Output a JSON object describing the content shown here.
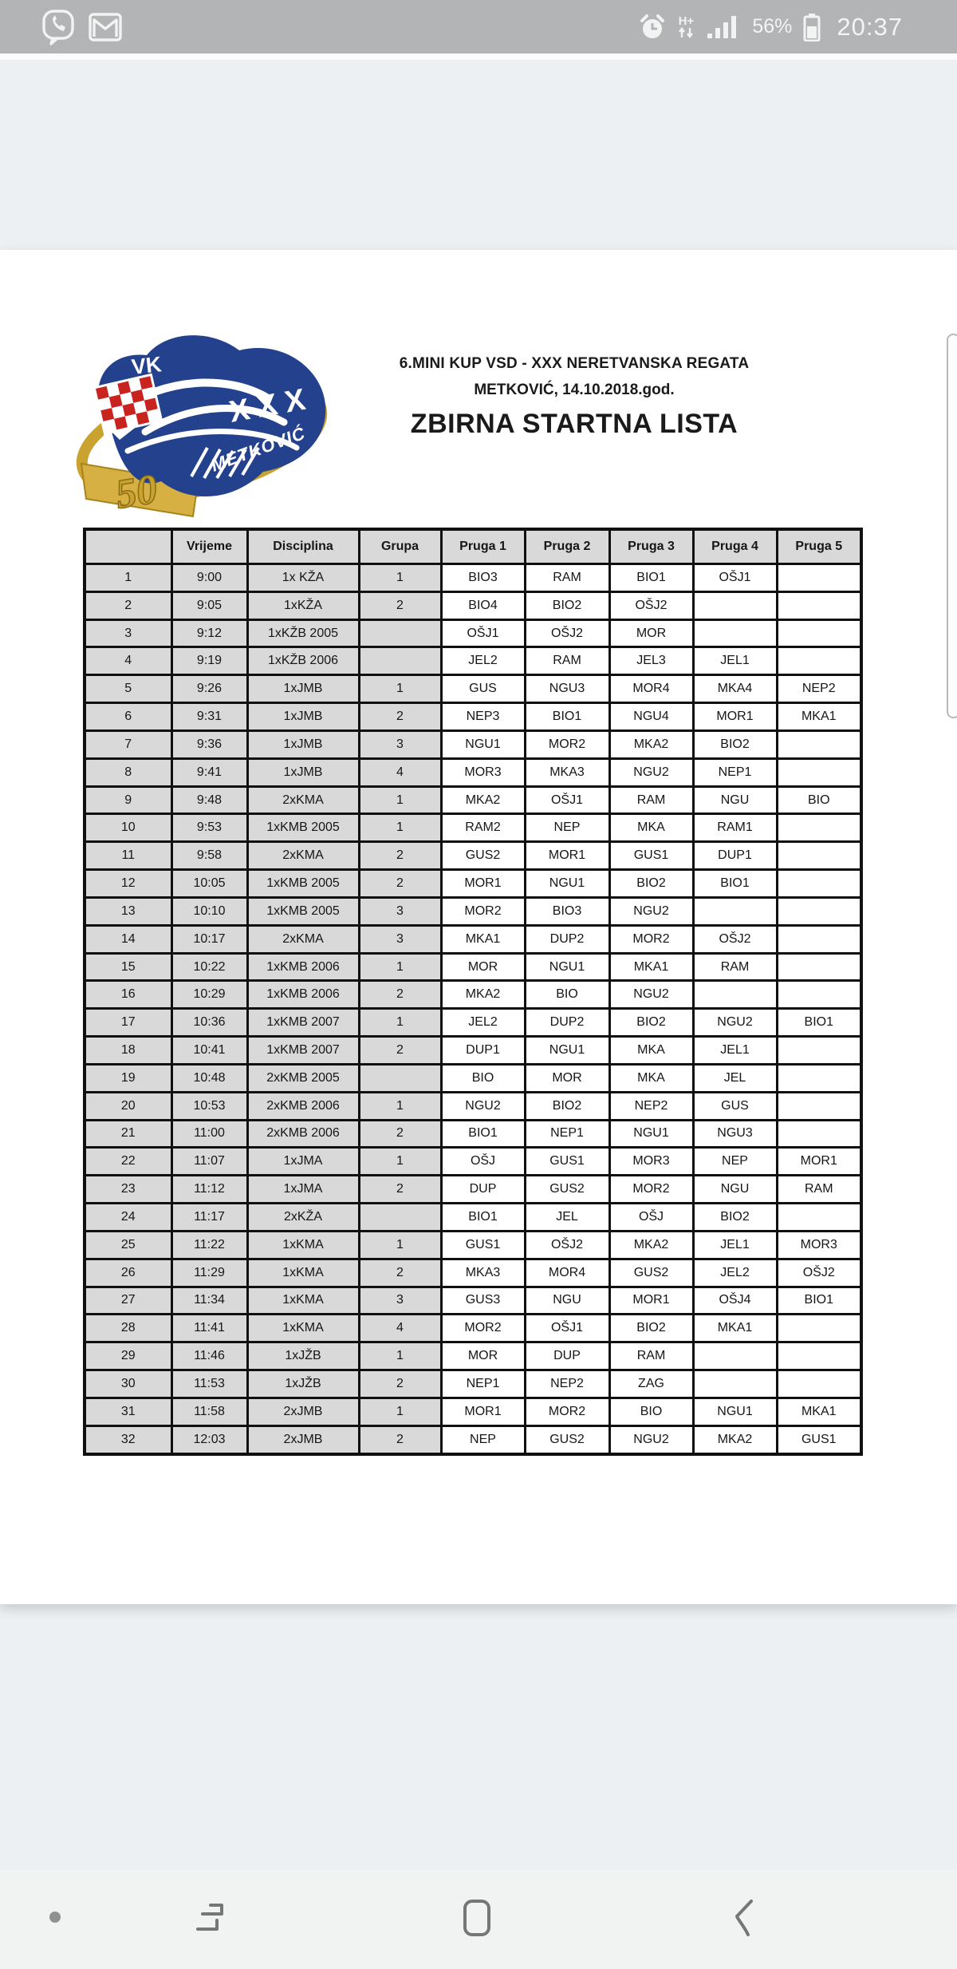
{
  "status_bar": {
    "time": "20:37",
    "battery_percent": "56%",
    "network_type": "H+",
    "left_icons": [
      "viber",
      "gmail"
    ],
    "right_icons": [
      "alarm",
      "network",
      "signal",
      "battery"
    ]
  },
  "document": {
    "title_line1": "6.MINI KUP VSD - XXX NERETVANSKA REGATA",
    "title_line2": "METKOVIĆ, 14.10.2018.god.",
    "title_main": "ZBIRNA STARTNA LISTA",
    "logo": {
      "club_initials": "VK",
      "roman_numeral": "XXX",
      "city": "METKOVIĆ",
      "anniversary": "50"
    },
    "table": {
      "headers": [
        "",
        "Vrijeme",
        "Disciplina",
        "Grupa",
        "Pruga 1",
        "Pruga 2",
        "Pruga 3",
        "Pruga 4",
        "Pruga 5"
      ],
      "rows": [
        [
          "1",
          "9:00",
          "1x KŽA",
          "1",
          "BIO3",
          "RAM",
          "BIO1",
          "OŠJ1",
          ""
        ],
        [
          "2",
          "9:05",
          "1xKŽA",
          "2",
          "BIO4",
          "BIO2",
          "OŠJ2",
          "",
          ""
        ],
        [
          "3",
          "9:12",
          "1xKŽB 2005",
          "",
          "OŠJ1",
          "OŠJ2",
          "MOR",
          "",
          ""
        ],
        [
          "4",
          "9:19",
          "1xKŽB 2006",
          "",
          "JEL2",
          "RAM",
          "JEL3",
          "JEL1",
          ""
        ],
        [
          "5",
          "9:26",
          "1xJMB",
          "1",
          "GUS",
          "NGU3",
          "MOR4",
          "MKA4",
          "NEP2"
        ],
        [
          "6",
          "9:31",
          "1xJMB",
          "2",
          "NEP3",
          "BIO1",
          "NGU4",
          "MOR1",
          "MKA1"
        ],
        [
          "7",
          "9:36",
          "1xJMB",
          "3",
          "NGU1",
          "MOR2",
          "MKA2",
          "BIO2",
          ""
        ],
        [
          "8",
          "9:41",
          "1xJMB",
          "4",
          "MOR3",
          "MKA3",
          "NGU2",
          "NEP1",
          ""
        ],
        [
          "9",
          "9:48",
          "2xKMA",
          "1",
          "MKA2",
          "OŠJ1",
          "RAM",
          "NGU",
          "BIO"
        ],
        [
          "10",
          "9:53",
          "1xKMB 2005",
          "1",
          "RAM2",
          "NEP",
          "MKA",
          "RAM1",
          ""
        ],
        [
          "11",
          "9:58",
          "2xKMA",
          "2",
          "GUS2",
          "MOR1",
          "GUS1",
          "DUP1",
          ""
        ],
        [
          "12",
          "10:05",
          "1xKMB 2005",
          "2",
          "MOR1",
          "NGU1",
          "BIO2",
          "BIO1",
          ""
        ],
        [
          "13",
          "10:10",
          "1xKMB 2005",
          "3",
          "MOR2",
          "BIO3",
          "NGU2",
          "",
          ""
        ],
        [
          "14",
          "10:17",
          "2xKMA",
          "3",
          "MKA1",
          "DUP2",
          "MOR2",
          "OŠJ2",
          ""
        ],
        [
          "15",
          "10:22",
          "1xKMB 2006",
          "1",
          "MOR",
          "NGU1",
          "MKA1",
          "RAM",
          ""
        ],
        [
          "16",
          "10:29",
          "1xKMB 2006",
          "2",
          "MKA2",
          "BIO",
          "NGU2",
          "",
          ""
        ],
        [
          "17",
          "10:36",
          "1xKMB 2007",
          "1",
          "JEL2",
          "DUP2",
          "BIO2",
          "NGU2",
          "BIO1"
        ],
        [
          "18",
          "10:41",
          "1xKMB 2007",
          "2",
          "DUP1",
          "NGU1",
          "MKA",
          "JEL1",
          ""
        ],
        [
          "19",
          "10:48",
          "2xKMB 2005",
          "",
          "BIO",
          "MOR",
          "MKA",
          "JEL",
          ""
        ],
        [
          "20",
          "10:53",
          "2xKMB 2006",
          "1",
          "NGU2",
          "BIO2",
          "NEP2",
          "GUS",
          ""
        ],
        [
          "21",
          "11:00",
          "2xKMB 2006",
          "2",
          "BIO1",
          "NEP1",
          "NGU1",
          "NGU3",
          ""
        ],
        [
          "22",
          "11:07",
          "1xJMA",
          "1",
          "OŠJ",
          "GUS1",
          "MOR3",
          "NEP",
          "MOR1"
        ],
        [
          "23",
          "11:12",
          "1xJMA",
          "2",
          "DUP",
          "GUS2",
          "MOR2",
          "NGU",
          "RAM"
        ],
        [
          "24",
          "11:17",
          "2xKŽA",
          "",
          "BIO1",
          "JEL",
          "OŠJ",
          "BIO2",
          ""
        ],
        [
          "25",
          "11:22",
          "1xKMA",
          "1",
          "GUS1",
          "OŠJ2",
          "MKA2",
          "JEL1",
          "MOR3"
        ],
        [
          "26",
          "11:29",
          "1xKMA",
          "2",
          "MKA3",
          "MOR4",
          "GUS2",
          "JEL2",
          "OŠJ2"
        ],
        [
          "27",
          "11:34",
          "1xKMA",
          "3",
          "GUS3",
          "NGU",
          "MOR1",
          "OŠJ4",
          "BIO1"
        ],
        [
          "28",
          "11:41",
          "1xKMA",
          "4",
          "MOR2",
          "OŠJ1",
          "BIO2",
          "MKA1",
          ""
        ],
        [
          "29",
          "11:46",
          "1xJŽB",
          "1",
          "MOR",
          "DUP",
          "RAM",
          "",
          ""
        ],
        [
          "30",
          "11:53",
          "1xJŽB",
          "2",
          "NEP1",
          "NEP2",
          "ZAG",
          "",
          ""
        ],
        [
          "31",
          "11:58",
          "2xJMB",
          "1",
          "MOR1",
          "MOR2",
          "BIO",
          "NGU1",
          "MKA1"
        ],
        [
          "32",
          "12:03",
          "2xJMB",
          "2",
          "NEP",
          "GUS2",
          "NGU2",
          "MKA2",
          "GUS1"
        ]
      ]
    }
  },
  "nav_bar": {
    "buttons": [
      "recents",
      "home",
      "back"
    ]
  },
  "colors": {
    "status_bar_bg": "#b2b4b6",
    "app_band_bg": "#edf0f3",
    "page_bg": "#ffffff",
    "nav_bar_bg": "#f1f2f2",
    "table_header_bg": "#d9d9d9",
    "table_border": "#101010",
    "logo_blue": "#24418e",
    "logo_gold": "#c9a22f",
    "logo_red": "#c8231e"
  }
}
